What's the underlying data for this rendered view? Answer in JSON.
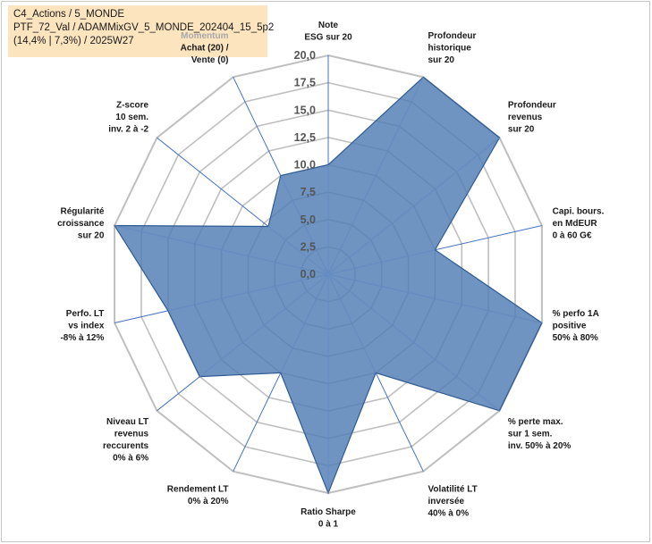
{
  "header": {
    "line1": "C4_Actions / 5_MONDE",
    "line2": "PTF_72_Val / ADAMMixGV_5_MONDE_202404_15_5p2",
    "line3": "(14,4% | 7,3%) / 2025W27"
  },
  "chart_data": {
    "type": "radar",
    "rlim": [
      0,
      20
    ],
    "ticks": [
      "0,0",
      "2,5",
      "5,0",
      "7,5",
      "10,0",
      "12,5",
      "15,0",
      "17,5",
      "20,0"
    ],
    "tick_values": [
      0,
      2.5,
      5,
      7.5,
      10,
      12.5,
      15,
      17.5,
      20
    ],
    "grid": true,
    "categories": [
      {
        "label": [
          "Note",
          "ESG sur 20"
        ],
        "value": 10
      },
      {
        "label": [
          "Profondeur",
          "historique",
          "sur 20"
        ],
        "value": 20
      },
      {
        "label": [
          "Profondeur",
          "revenus",
          "sur 20"
        ],
        "value": 20
      },
      {
        "label": [
          "Capi. bours.",
          "en MdEUR",
          "0 à 60 G€"
        ],
        "value": 10
      },
      {
        "label": [
          "% perfo 1A",
          "positive",
          "50% à 80%"
        ],
        "value": 20
      },
      {
        "label": [
          "% perte max.",
          "sur 1 sem.",
          "inv. 50% à 20%"
        ],
        "value": 20
      },
      {
        "label": [
          "Volatilité LT",
          "inversée",
          "40% à 0%"
        ],
        "value": 10
      },
      {
        "label": [
          "Ratio Sharpe",
          "0 à 1"
        ],
        "value": 20
      },
      {
        "label": [
          "Rendement LT",
          "0% à 20%"
        ],
        "value": 10
      },
      {
        "label": [
          "Niveau LT",
          "revenus",
          "reccurents",
          "0% à 6%"
        ],
        "value": 15
      },
      {
        "label": [
          "Perfo. LT",
          "vs index",
          "-8% à 12%"
        ],
        "value": 15
      },
      {
        "label": [
          "Régularité",
          "croissance",
          "sur 20"
        ],
        "value": 20
      },
      {
        "label": [
          "Z-score",
          "10 sem.",
          "inv. 2 à -2"
        ],
        "value": 7
      },
      {
        "label": [
          "Momentum",
          "Achat (20) /",
          "Vente (0)"
        ],
        "value": 10,
        "first_line_dim": true
      }
    ],
    "colors": {
      "fill": "#4f7db4",
      "stroke": "#2f5b93",
      "grid": "#bfbfbf",
      "axis": "#4472c4"
    }
  }
}
